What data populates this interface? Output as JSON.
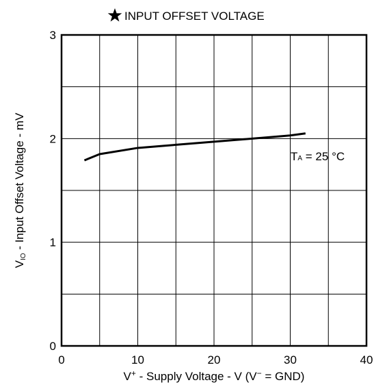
{
  "chart_data": {
    "type": "line",
    "title": "INPUT OFFSET VOLTAGE",
    "title_icon": "star-icon",
    "xlabel": {
      "prefix": "V",
      "prefix_superscript": "+",
      "main": " - Supply Voltage - V (V",
      "main_superscript": "−",
      "suffix": " = GND)"
    },
    "ylabel": {
      "prefix": "V",
      "prefix_subscript": "IO",
      "main": " - Input Offset Voltage - mV"
    },
    "xlim": [
      0,
      40
    ],
    "ylim": [
      0,
      3
    ],
    "x_major_ticks": [
      0,
      10,
      20,
      30,
      40
    ],
    "x_tick_labels": [
      "0",
      "10",
      "20",
      "30",
      "40"
    ],
    "y_major_ticks": [
      0,
      1,
      2,
      3
    ],
    "y_tick_labels": [
      "0",
      "1",
      "2",
      "3"
    ],
    "x_gridlines": [
      5,
      10,
      15,
      20,
      25,
      30,
      35
    ],
    "y_gridlines": [
      0.5,
      1,
      1.5,
      2,
      2.5
    ],
    "grid": true,
    "series": [
      {
        "x": [
          3,
          5,
          10,
          15,
          20,
          25,
          30,
          32
        ],
        "y": [
          1.79,
          1.85,
          1.91,
          1.94,
          1.97,
          2.0,
          2.03,
          2.05
        ]
      }
    ],
    "annotation": {
      "prefix": "T",
      "subscript": "A",
      "text": " = 25 °C"
    }
  }
}
